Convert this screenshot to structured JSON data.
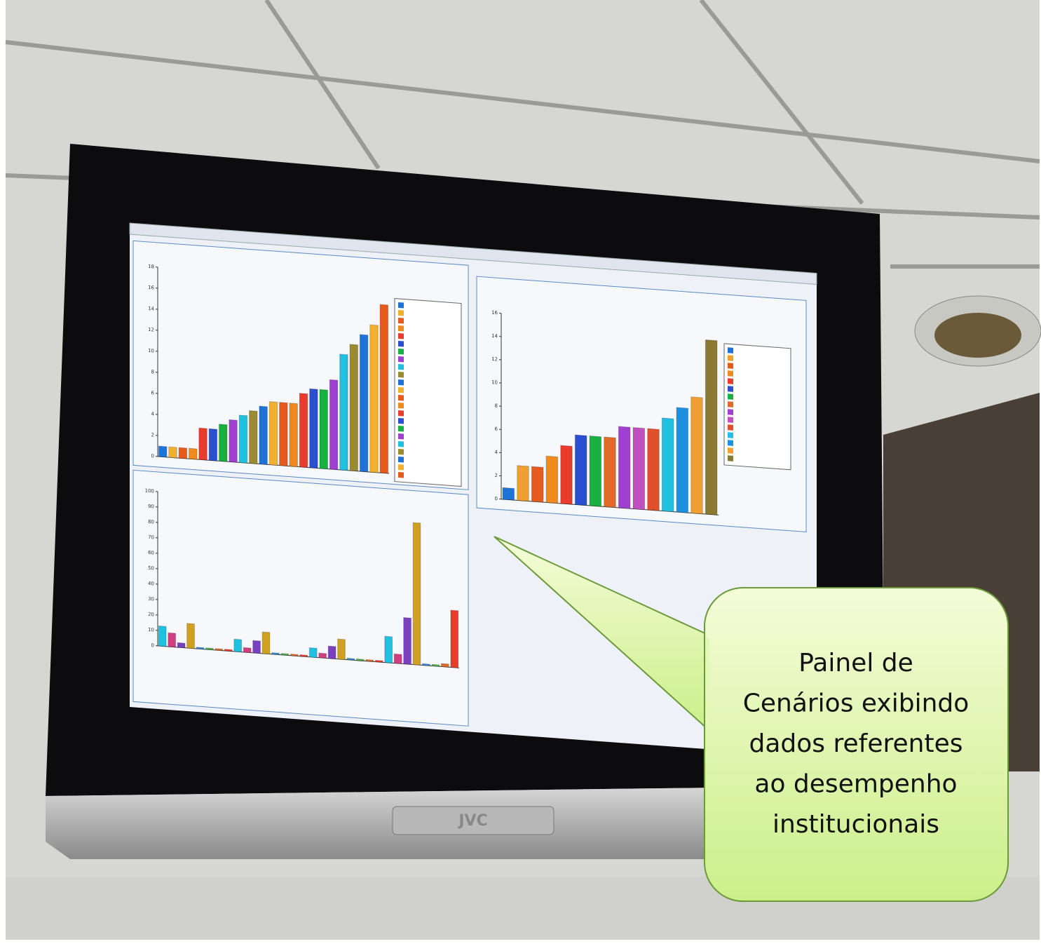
{
  "monitor": {
    "brand": "JVC"
  },
  "screen_charts": [
    {
      "type": "bar",
      "ylim": [
        0,
        18
      ],
      "yticks": [
        0,
        2,
        4,
        6,
        8,
        10,
        12,
        14,
        16,
        18
      ],
      "values": [
        1,
        1,
        1,
        1,
        3,
        3,
        3.5,
        4,
        4.5,
        5,
        5.5,
        6,
        6,
        6,
        7,
        7.5,
        7.5,
        8.5,
        11,
        12,
        13,
        14,
        16
      ],
      "colors": [
        "#1e73d8",
        "#f0b030",
        "#e65a1e",
        "#f08a1e",
        "#e83c2c",
        "#2a4fd0",
        "#18b040",
        "#a040d0",
        "#20c0e0",
        "#9a8a30"
      ]
    },
    {
      "type": "bar",
      "ylim": [
        0,
        16
      ],
      "yticks": [
        0,
        2,
        4,
        6,
        8,
        10,
        12,
        14,
        16
      ],
      "values": [
        1,
        3,
        3,
        4,
        5,
        6,
        6,
        6,
        7,
        7,
        7,
        8,
        9,
        10,
        15
      ],
      "colors": [
        "#1e73d8",
        "#f0a030",
        "#e65a1e",
        "#f08a1e",
        "#e83c2c",
        "#2a4fd0",
        "#18b040",
        "#e06a2a",
        "#a040d0",
        "#c050c0",
        "#e0502a",
        "#20c0e0",
        "#1e90e0",
        "#f0a030",
        "#8a7a30"
      ]
    },
    {
      "type": "bar",
      "ylim": [
        0,
        100
      ],
      "yticks": [
        0,
        10,
        20,
        30,
        40,
        50,
        60,
        70,
        80,
        90,
        100
      ],
      "values": [
        13,
        9,
        3,
        16,
        1,
        1,
        1,
        1,
        8,
        3,
        8,
        14,
        1,
        1,
        1,
        1,
        6,
        3,
        8,
        13,
        1,
        1,
        1,
        1,
        17,
        6,
        30,
        92,
        1,
        1,
        2,
        37
      ],
      "colors": [
        "#20c0e0",
        "#d04080",
        "#7a40c0",
        "#d0a020",
        "#3a8ad0",
        "#50b050",
        "#e06a2a",
        "#e83c2c"
      ]
    }
  ],
  "callout": {
    "lines": [
      "Painel de",
      "Cenários exibindo",
      "dados referentes",
      "ao desempenho",
      "institucionais"
    ]
  }
}
